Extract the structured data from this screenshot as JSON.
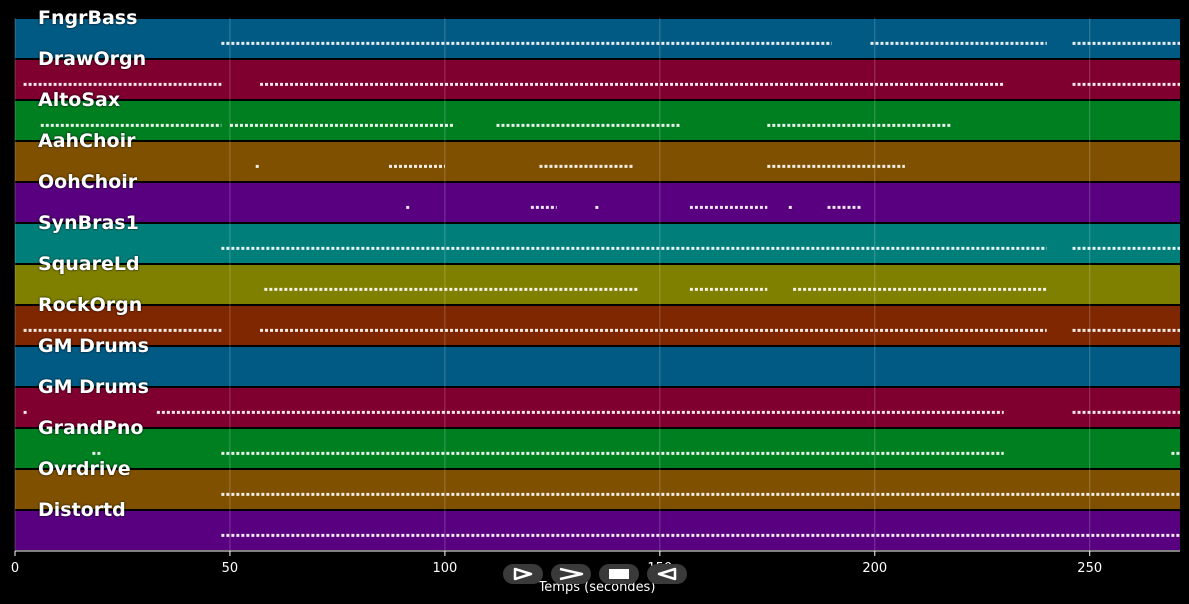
{
  "x_axis": {
    "title": "Temps (secondes)",
    "ticks": [
      0,
      50,
      100,
      150,
      200,
      250
    ],
    "range": [
      0,
      271
    ]
  },
  "tracks": [
    {
      "name": "FngrBass",
      "color": "#005a83"
    },
    {
      "name": "DrawOrgn",
      "color": "#7f002f"
    },
    {
      "name": "AltoSax",
      "color": "#007f21"
    },
    {
      "name": "AahChoir",
      "color": "#7f5000"
    },
    {
      "name": "OohChoir",
      "color": "#58007f"
    },
    {
      "name": "SynBras1",
      "color": "#007f7a"
    },
    {
      "name": "SquareLd",
      "color": "#7f7f00"
    },
    {
      "name": "RockOrgn",
      "color": "#7f2700"
    },
    {
      "name": "GM Drums",
      "color": "#005a83"
    },
    {
      "name": "GM Drums",
      "color": "#7f002f"
    },
    {
      "name": "GrandPno",
      "color": "#007f21"
    },
    {
      "name": "Ovrdrive",
      "color": "#7f5000"
    },
    {
      "name": "Distortd",
      "color": "#58007f"
    }
  ],
  "note_segments": [
    [
      [
        48,
        190
      ],
      [
        199,
        240
      ],
      [
        246,
        271
      ]
    ],
    [
      [
        2,
        48
      ],
      [
        57,
        230
      ],
      [
        246,
        271
      ]
    ],
    [
      [
        6,
        48
      ],
      [
        50,
        102
      ],
      [
        112,
        155
      ],
      [
        175,
        218
      ]
    ],
    [
      [
        56,
        57
      ],
      [
        87,
        100
      ],
      [
        122,
        144
      ],
      [
        175,
        207
      ]
    ],
    [
      [
        91,
        92
      ],
      [
        120,
        126
      ],
      [
        135,
        136
      ],
      [
        157,
        175
      ],
      [
        180,
        181
      ],
      [
        189,
        197
      ]
    ],
    [
      [
        48,
        240
      ],
      [
        246,
        271
      ]
    ],
    [
      [
        58,
        145
      ],
      [
        157,
        175
      ],
      [
        181,
        240
      ]
    ],
    [
      [
        2,
        48
      ],
      [
        57,
        240
      ],
      [
        246,
        271
      ]
    ],
    [],
    [
      [
        2,
        3
      ],
      [
        33,
        230
      ],
      [
        246,
        271
      ]
    ],
    [
      [
        18,
        20
      ],
      [
        48,
        230
      ],
      [
        269,
        271
      ]
    ],
    [
      [
        48,
        271
      ]
    ],
    [
      [
        48,
        271
      ]
    ]
  ],
  "transport": {
    "play_icon": "play-outline-icon",
    "forward_icon": "forward-icon",
    "stop_icon": "stop-icon",
    "rewind_icon": "rewind-icon"
  }
}
